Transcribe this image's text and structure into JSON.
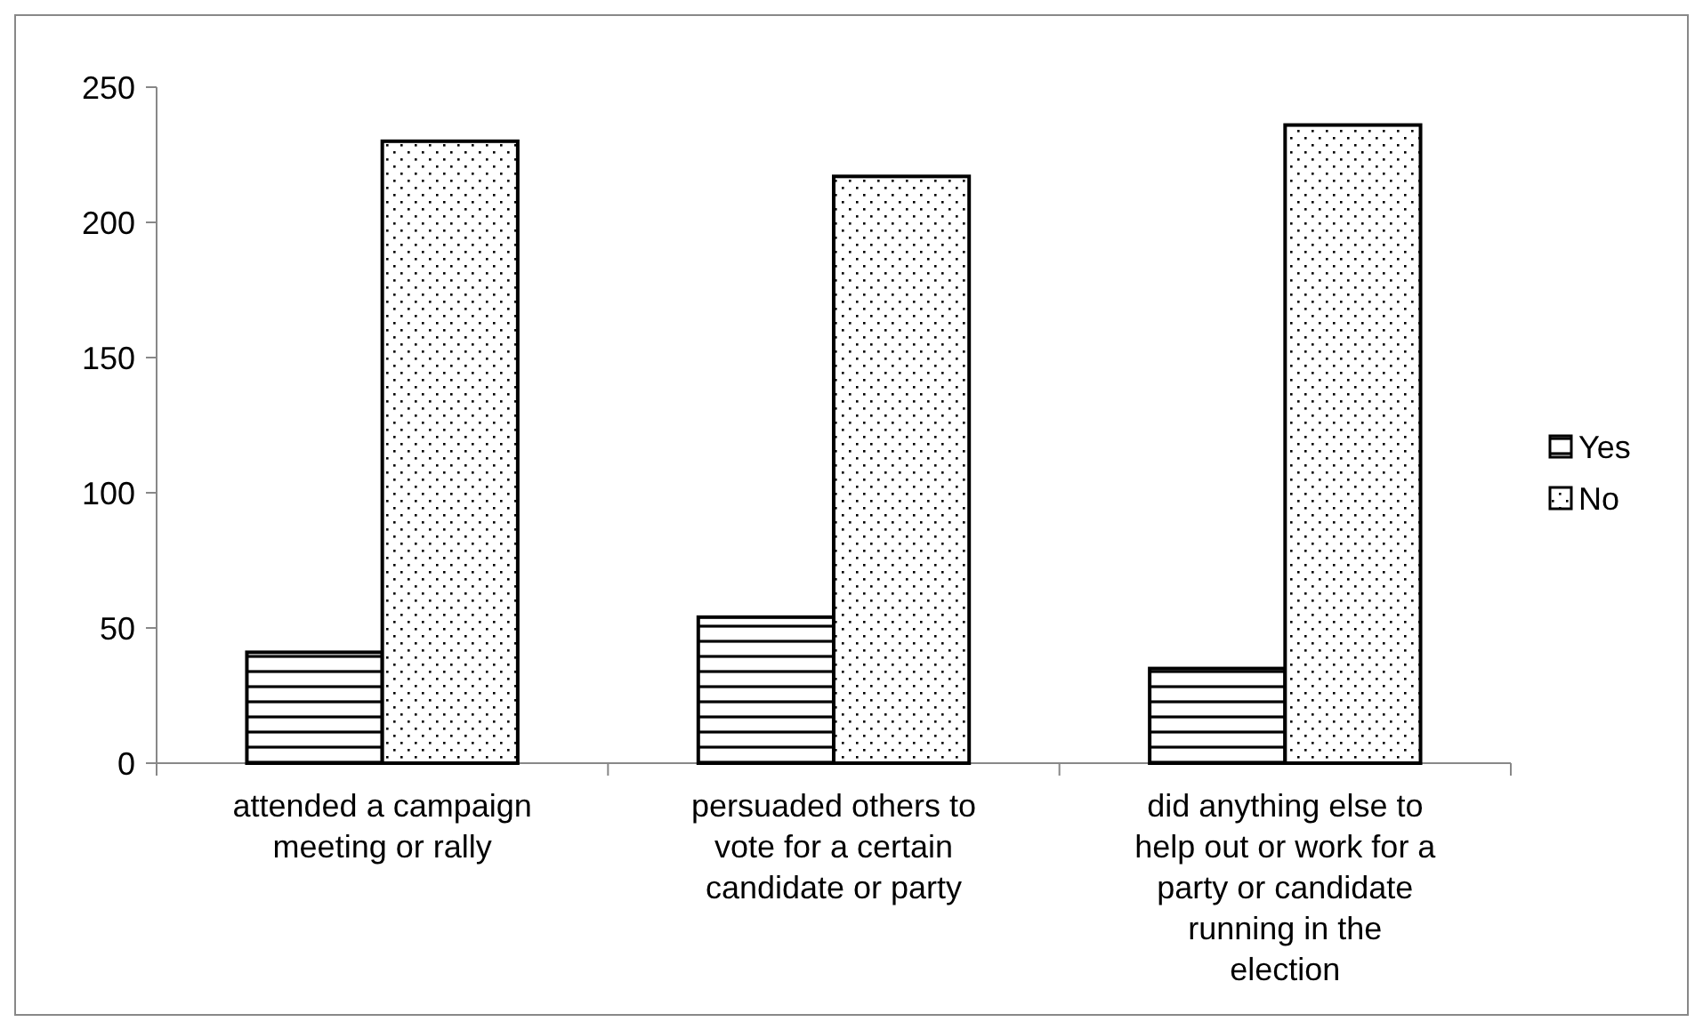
{
  "chart_data": {
    "type": "bar",
    "categories": [
      "attended a campaign meeting or rally",
      "persuaded others to vote for a certain candidate or party",
      "did anything else to help out or work for a party or candidate running in the election"
    ],
    "series": [
      {
        "name": "Yes",
        "color": "#000000",
        "values": [
          41,
          54,
          35
        ]
      },
      {
        "name": "No",
        "color": "#000000",
        "values": [
          230,
          217,
          236
        ]
      }
    ],
    "ylim": [
      0,
      250
    ],
    "yticks": [
      0,
      50,
      100,
      150,
      200,
      250
    ],
    "grid": false,
    "legend": "right"
  }
}
